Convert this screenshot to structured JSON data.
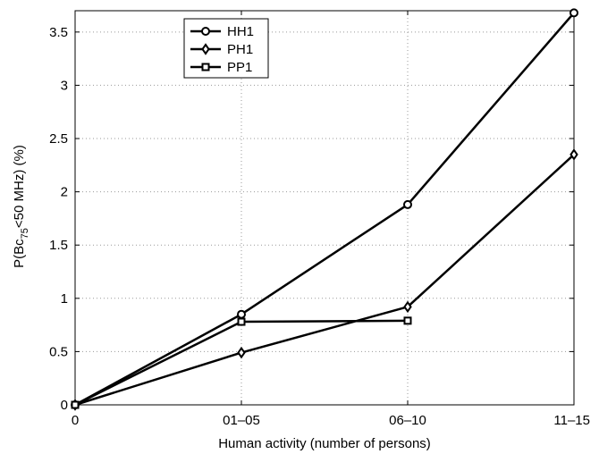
{
  "chart_data": {
    "type": "line",
    "categories": [
      "0",
      "01–05",
      "06–10",
      "11–15"
    ],
    "xlabel": "Human activity (number of persons)",
    "ylabel": {
      "prefix": "P(Bc",
      "subscript": "75",
      "suffix": "<50 MHz) (%)"
    },
    "ylim": [
      0,
      3.7
    ],
    "yticks": [
      0,
      0.5,
      1,
      1.5,
      2,
      2.5,
      3,
      3.5
    ],
    "ytick_labels": [
      "0",
      "0.5",
      "1",
      "1.5",
      "2",
      "2.5",
      "3",
      "3.5"
    ],
    "grid": true,
    "legend_position": "top-left",
    "series": [
      {
        "name": "HH1",
        "marker": "circle",
        "x": [
          0,
          1,
          2,
          3
        ],
        "values": [
          0,
          0.85,
          1.88,
          3.68
        ]
      },
      {
        "name": "PH1",
        "marker": "diamond",
        "x": [
          0,
          1,
          2,
          3
        ],
        "values": [
          0,
          0.49,
          0.92,
          2.35
        ]
      },
      {
        "name": "PP1",
        "marker": "square",
        "x": [
          0,
          1,
          2
        ],
        "values": [
          0,
          0.78,
          0.79
        ]
      }
    ],
    "colors": {
      "line": "#000000",
      "grid": "#999999",
      "background": "#ffffff"
    }
  }
}
